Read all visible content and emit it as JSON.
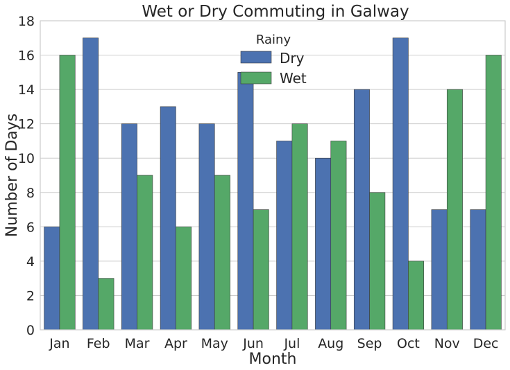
{
  "chart_data": {
    "type": "bar",
    "title": "Wet or Dry Commuting in Galway",
    "xlabel": "Month",
    "ylabel": "Number of Days",
    "categories": [
      "Jan",
      "Feb",
      "Mar",
      "Apr",
      "May",
      "Jun",
      "Jul",
      "Aug",
      "Sep",
      "Oct",
      "Nov",
      "Dec"
    ],
    "series": [
      {
        "name": "Dry",
        "color": "#4c72b0",
        "values": [
          6,
          17,
          12,
          13,
          12,
          15,
          11,
          10,
          14,
          17,
          7,
          7
        ]
      },
      {
        "name": "Wet",
        "color": "#55a868",
        "values": [
          16,
          3,
          9,
          6,
          9,
          7,
          12,
          11,
          8,
          4,
          14,
          16
        ]
      }
    ],
    "ylim": [
      0,
      18
    ],
    "yticks": [
      0,
      2,
      4,
      6,
      8,
      10,
      12,
      14,
      16,
      18
    ],
    "grid": "horizontal",
    "legend": {
      "title": "Rainy",
      "placement": "top-center"
    }
  }
}
